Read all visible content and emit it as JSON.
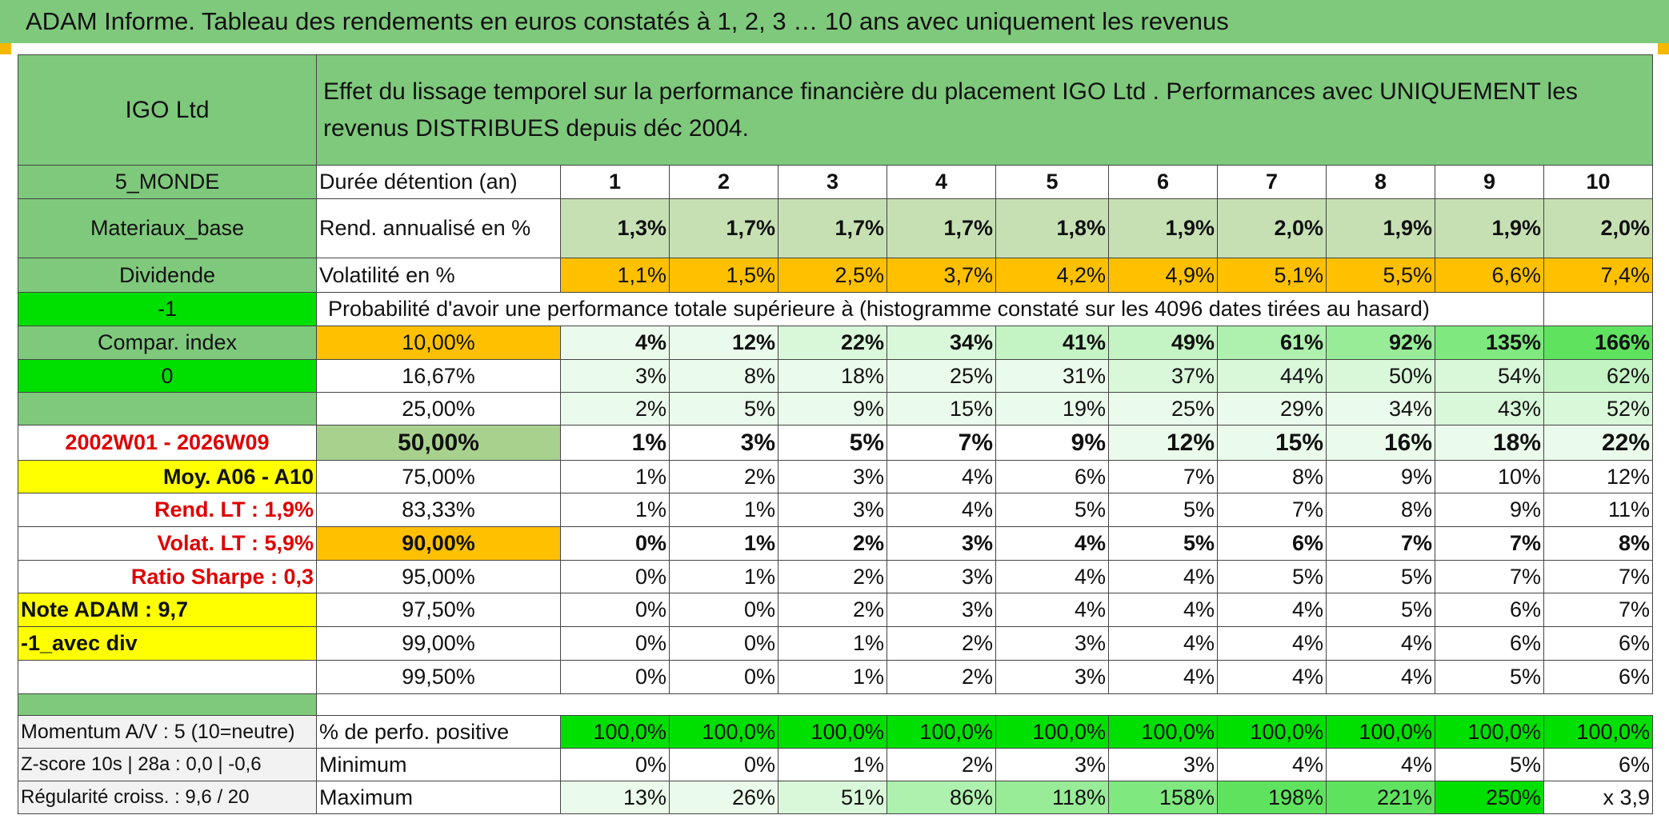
{
  "title": "ADAM Informe. Tableau des rendements en euros constatés à 1, 2, 3 … 10 ans avec uniquement les revenus",
  "header": {
    "fund": "IGO Ltd",
    "description": "Effet du lissage temporel sur la performance financière du placement IGO Ltd . Performances avec UNIQUEMENT les revenus DISTRIBUES depuis déc 2004."
  },
  "left": {
    "zone": "5_MONDE",
    "sector": "Materiaux_base",
    "type": "Dividende",
    "flag1": "-1",
    "compar": "Compar. index",
    "flag2": "0",
    "period": "2002W01 - 2026W09",
    "moy": "Moy. A06 - A10",
    "rend_lt": "Rend. LT :   1,9%",
    "volat_lt": "Volat. LT :   5,9%",
    "sharpe": "Ratio Sharpe :    0,3",
    "note": "Note ADAM : 9,7",
    "avec_div": "-1_avec div",
    "momentum": "Momentum A/V : 5 (10=neutre)",
    "zscore": "Z-score 10s | 28a : 0,0 | -0,6",
    "regularite": "Régularité croiss. : 9,6 / 20"
  },
  "rows": {
    "duree_label": "Durée détention (an)",
    "years": [
      "1",
      "2",
      "3",
      "4",
      "5",
      "6",
      "7",
      "8",
      "9",
      "10"
    ],
    "rend_label": "Rend. annualisé en %",
    "rend": [
      "1,3%",
      "1,7%",
      "1,7%",
      "1,7%",
      "1,8%",
      "1,9%",
      "2,0%",
      "1,9%",
      "1,9%",
      "2,0%"
    ],
    "vol_label": "Volatilité en %",
    "vol": [
      "1,1%",
      "1,5%",
      "2,5%",
      "3,7%",
      "4,2%",
      "4,9%",
      "5,1%",
      "5,5%",
      "6,6%",
      "7,4%"
    ],
    "proba_label": "Probabilité d'avoir une performance totale supérieure à (histogramme constaté sur les 4096 dates tirées au hasard)"
  },
  "quantiles": [
    {
      "p": "10,00%",
      "v": [
        "4%",
        "12%",
        "22%",
        "34%",
        "41%",
        "49%",
        "61%",
        "92%",
        "135%",
        "166%"
      ]
    },
    {
      "p": "16,67%",
      "v": [
        "3%",
        "8%",
        "18%",
        "25%",
        "31%",
        "37%",
        "44%",
        "50%",
        "54%",
        "62%"
      ]
    },
    {
      "p": "25,00%",
      "v": [
        "2%",
        "5%",
        "9%",
        "15%",
        "19%",
        "25%",
        "29%",
        "34%",
        "43%",
        "52%"
      ]
    },
    {
      "p": "50,00%",
      "v": [
        "1%",
        "3%",
        "5%",
        "7%",
        "9%",
        "12%",
        "15%",
        "16%",
        "18%",
        "22%"
      ]
    },
    {
      "p": "75,00%",
      "v": [
        "1%",
        "2%",
        "3%",
        "4%",
        "6%",
        "7%",
        "8%",
        "9%",
        "10%",
        "12%"
      ]
    },
    {
      "p": "83,33%",
      "v": [
        "1%",
        "1%",
        "3%",
        "4%",
        "5%",
        "5%",
        "7%",
        "8%",
        "9%",
        "11%"
      ]
    },
    {
      "p": "90,00%",
      "v": [
        "0%",
        "1%",
        "2%",
        "3%",
        "4%",
        "5%",
        "6%",
        "7%",
        "7%",
        "8%"
      ]
    },
    {
      "p": "95,00%",
      "v": [
        "0%",
        "1%",
        "2%",
        "3%",
        "4%",
        "4%",
        "5%",
        "5%",
        "7%",
        "7%"
      ]
    },
    {
      "p": "97,50%",
      "v": [
        "0%",
        "0%",
        "2%",
        "3%",
        "4%",
        "4%",
        "4%",
        "5%",
        "6%",
        "7%"
      ]
    },
    {
      "p": "99,00%",
      "v": [
        "0%",
        "0%",
        "1%",
        "2%",
        "3%",
        "4%",
        "4%",
        "4%",
        "6%",
        "6%"
      ]
    },
    {
      "p": "99,50%",
      "v": [
        "0%",
        "0%",
        "1%",
        "2%",
        "3%",
        "4%",
        "4%",
        "4%",
        "5%",
        "6%"
      ]
    }
  ],
  "bottom": {
    "positive_label": "% de perfo. positive",
    "positive": [
      "100,0%",
      "100,0%",
      "100,0%",
      "100,0%",
      "100,0%",
      "100,0%",
      "100,0%",
      "100,0%",
      "100,0%",
      "100,0%"
    ],
    "min_label": "Minimum",
    "min": [
      "0%",
      "0%",
      "1%",
      "2%",
      "3%",
      "3%",
      "4%",
      "4%",
      "5%",
      "6%"
    ],
    "max_label": "Maximum",
    "max": [
      "13%",
      "26%",
      "51%",
      "86%",
      "118%",
      "158%",
      "198%",
      "221%",
      "250%",
      "x 3,9"
    ]
  }
}
